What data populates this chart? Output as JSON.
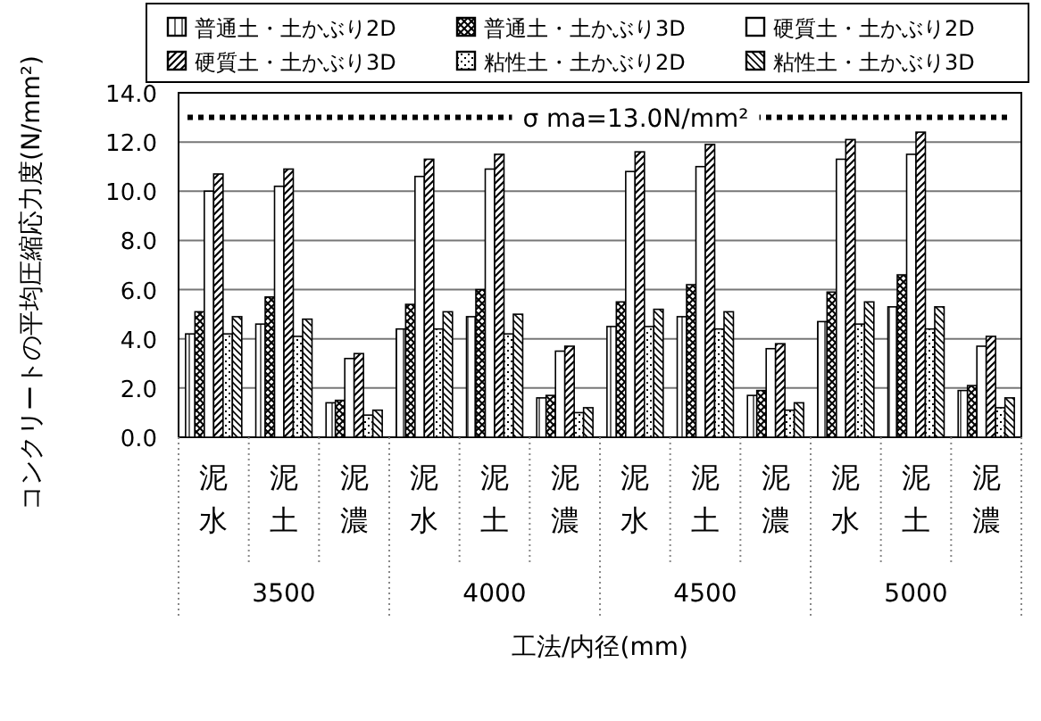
{
  "chart_data": {
    "type": "bar",
    "categories": [
      "泥水",
      "泥土",
      "泥濃",
      "泥水",
      "泥土",
      "泥濃",
      "泥水",
      "泥土",
      "泥濃",
      "泥水",
      "泥土",
      "泥濃"
    ],
    "series": [
      {
        "name": "普通土・土かぶり2D",
        "color": "#000000",
        "values": [
          4.2,
          4.6,
          1.4,
          4.4,
          4.9,
          1.6,
          4.5,
          4.9,
          1.7,
          4.7,
          5.3,
          1.9
        ]
      },
      {
        "name": "普通土・土かぶり3D",
        "color": "#000000",
        "values": [
          5.1,
          5.7,
          1.5,
          5.4,
          6.0,
          1.7,
          5.5,
          6.2,
          1.9,
          5.9,
          6.6,
          2.1
        ]
      },
      {
        "name": "硬質土・土かぶり2D",
        "color": "#000000",
        "values": [
          10.0,
          10.2,
          3.2,
          10.6,
          10.9,
          3.5,
          10.8,
          11.0,
          3.6,
          11.3,
          11.5,
          3.7
        ]
      },
      {
        "name": "硬質土・土かぶり3D",
        "color": "#000000",
        "values": [
          10.7,
          10.9,
          3.4,
          11.3,
          11.5,
          3.7,
          11.6,
          11.9,
          3.8,
          12.1,
          12.4,
          4.1
        ]
      },
      {
        "name": "粘性土・土かぶり2D",
        "color": "#000000",
        "values": [
          4.2,
          4.1,
          0.9,
          4.4,
          4.2,
          1.0,
          4.5,
          4.4,
          1.1,
          4.6,
          4.4,
          1.2
        ]
      },
      {
        "name": "粘性土・土かぶり3D",
        "color": "#000000",
        "values": [
          4.9,
          4.8,
          1.1,
          5.1,
          5.0,
          1.2,
          5.2,
          5.1,
          1.4,
          5.5,
          5.3,
          1.6
        ]
      }
    ],
    "ylim": [
      0,
      14
    ],
    "yticks": [
      {
        "value": 0,
        "label": "0.0"
      },
      {
        "value": 2,
        "label": "2.0"
      },
      {
        "value": 4,
        "label": "4.0"
      },
      {
        "value": 6,
        "label": "6.0"
      },
      {
        "value": 8,
        "label": "8.0"
      },
      {
        "value": 10,
        "label": "10.0"
      },
      {
        "value": 12,
        "label": "12.0"
      },
      {
        "value": 14,
        "label": "14.0"
      }
    ],
    "ylabel": "コンクリートの平均圧縮応力度(N/mm²)",
    "xlabel": "工法/内径(mm)",
    "annotations": [
      "3500",
      "4000",
      "4500",
      "5000"
    ],
    "ref_lines": [
      {
        "axis": "y",
        "value": 13,
        "label": "σ ma=13.0N/mm²",
        "line_style": "dotted",
        "color": "#000000"
      }
    ],
    "grid": "y",
    "legend": "top"
  }
}
